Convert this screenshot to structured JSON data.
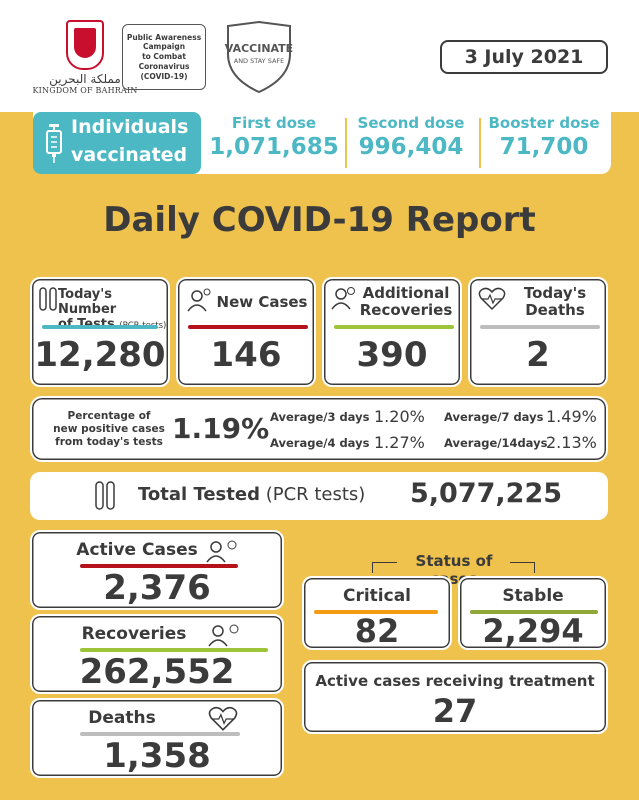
{
  "header": {
    "logo_arabic": "مملكة البحرين",
    "logo_english": "KINGDOM OF BAHRAIN",
    "campaign_lines": [
      "Public Awareness",
      "Campaign",
      "to Combat",
      "Coronavirus",
      "(COVID-19)"
    ],
    "badge_title": "VACCINATE",
    "badge_sub": "AND STAY SAFE",
    "date": "3 July 2021"
  },
  "vaccination": {
    "label_line1": "Individuals",
    "label_line2": "vaccinated",
    "first_label": "First dose",
    "first_value": "1,071,685",
    "second_label": "Second dose",
    "second_value": "996,404",
    "booster_label": "Booster dose",
    "booster_value": "71,700"
  },
  "title": "Daily COVID-19 Report",
  "daily": {
    "tests_label1": "Today's Number",
    "tests_label2": "of Tests",
    "tests_label_small": "(PCR tests)",
    "tests_value": "12,280",
    "new_cases_label": "New Cases",
    "new_cases_value": "146",
    "recoveries_label1": "Additional",
    "recoveries_label2": "Recoveries",
    "recoveries_value": "390",
    "deaths_label1": "Today's",
    "deaths_label2": "Deaths",
    "deaths_value": "2"
  },
  "percentage": {
    "label1": "Percentage of",
    "label2": "new positive cases",
    "label3": "from today's tests",
    "value": "1.19%",
    "avg3_label": "Average/3 days",
    "avg3_value": "1.20%",
    "avg4_label": "Average/4 days",
    "avg4_value": "1.27%",
    "avg7_label": "Average/7 days",
    "avg7_value": "1.49%",
    "avg14_label": "Average/14days",
    "avg14_value": "2.13%"
  },
  "total": {
    "label_bold": "Total Tested",
    "label_normal": "(PCR tests)",
    "value": "5,077,225"
  },
  "totals": {
    "active_label": "Active Cases",
    "active_value": "2,376",
    "recoveries_label": "Recoveries",
    "recoveries_value": "262,552",
    "deaths_label": "Deaths",
    "deaths_value": "1,358"
  },
  "status": {
    "title": "Status of cases",
    "critical_label": "Critical",
    "critical_value": "82",
    "stable_label": "Stable",
    "stable_value": "2,294",
    "treatment_label": "Active cases receiving treatment",
    "treatment_value": "27"
  },
  "colors": {
    "background": "#eec24c",
    "teal": "#4cb8c4",
    "red_bar": "#b5121b",
    "green_bar": "#9ec53a",
    "grey_bar": "#bdbdbd",
    "orange_bar": "#f39c12",
    "olive_bar": "#8ea93a"
  }
}
